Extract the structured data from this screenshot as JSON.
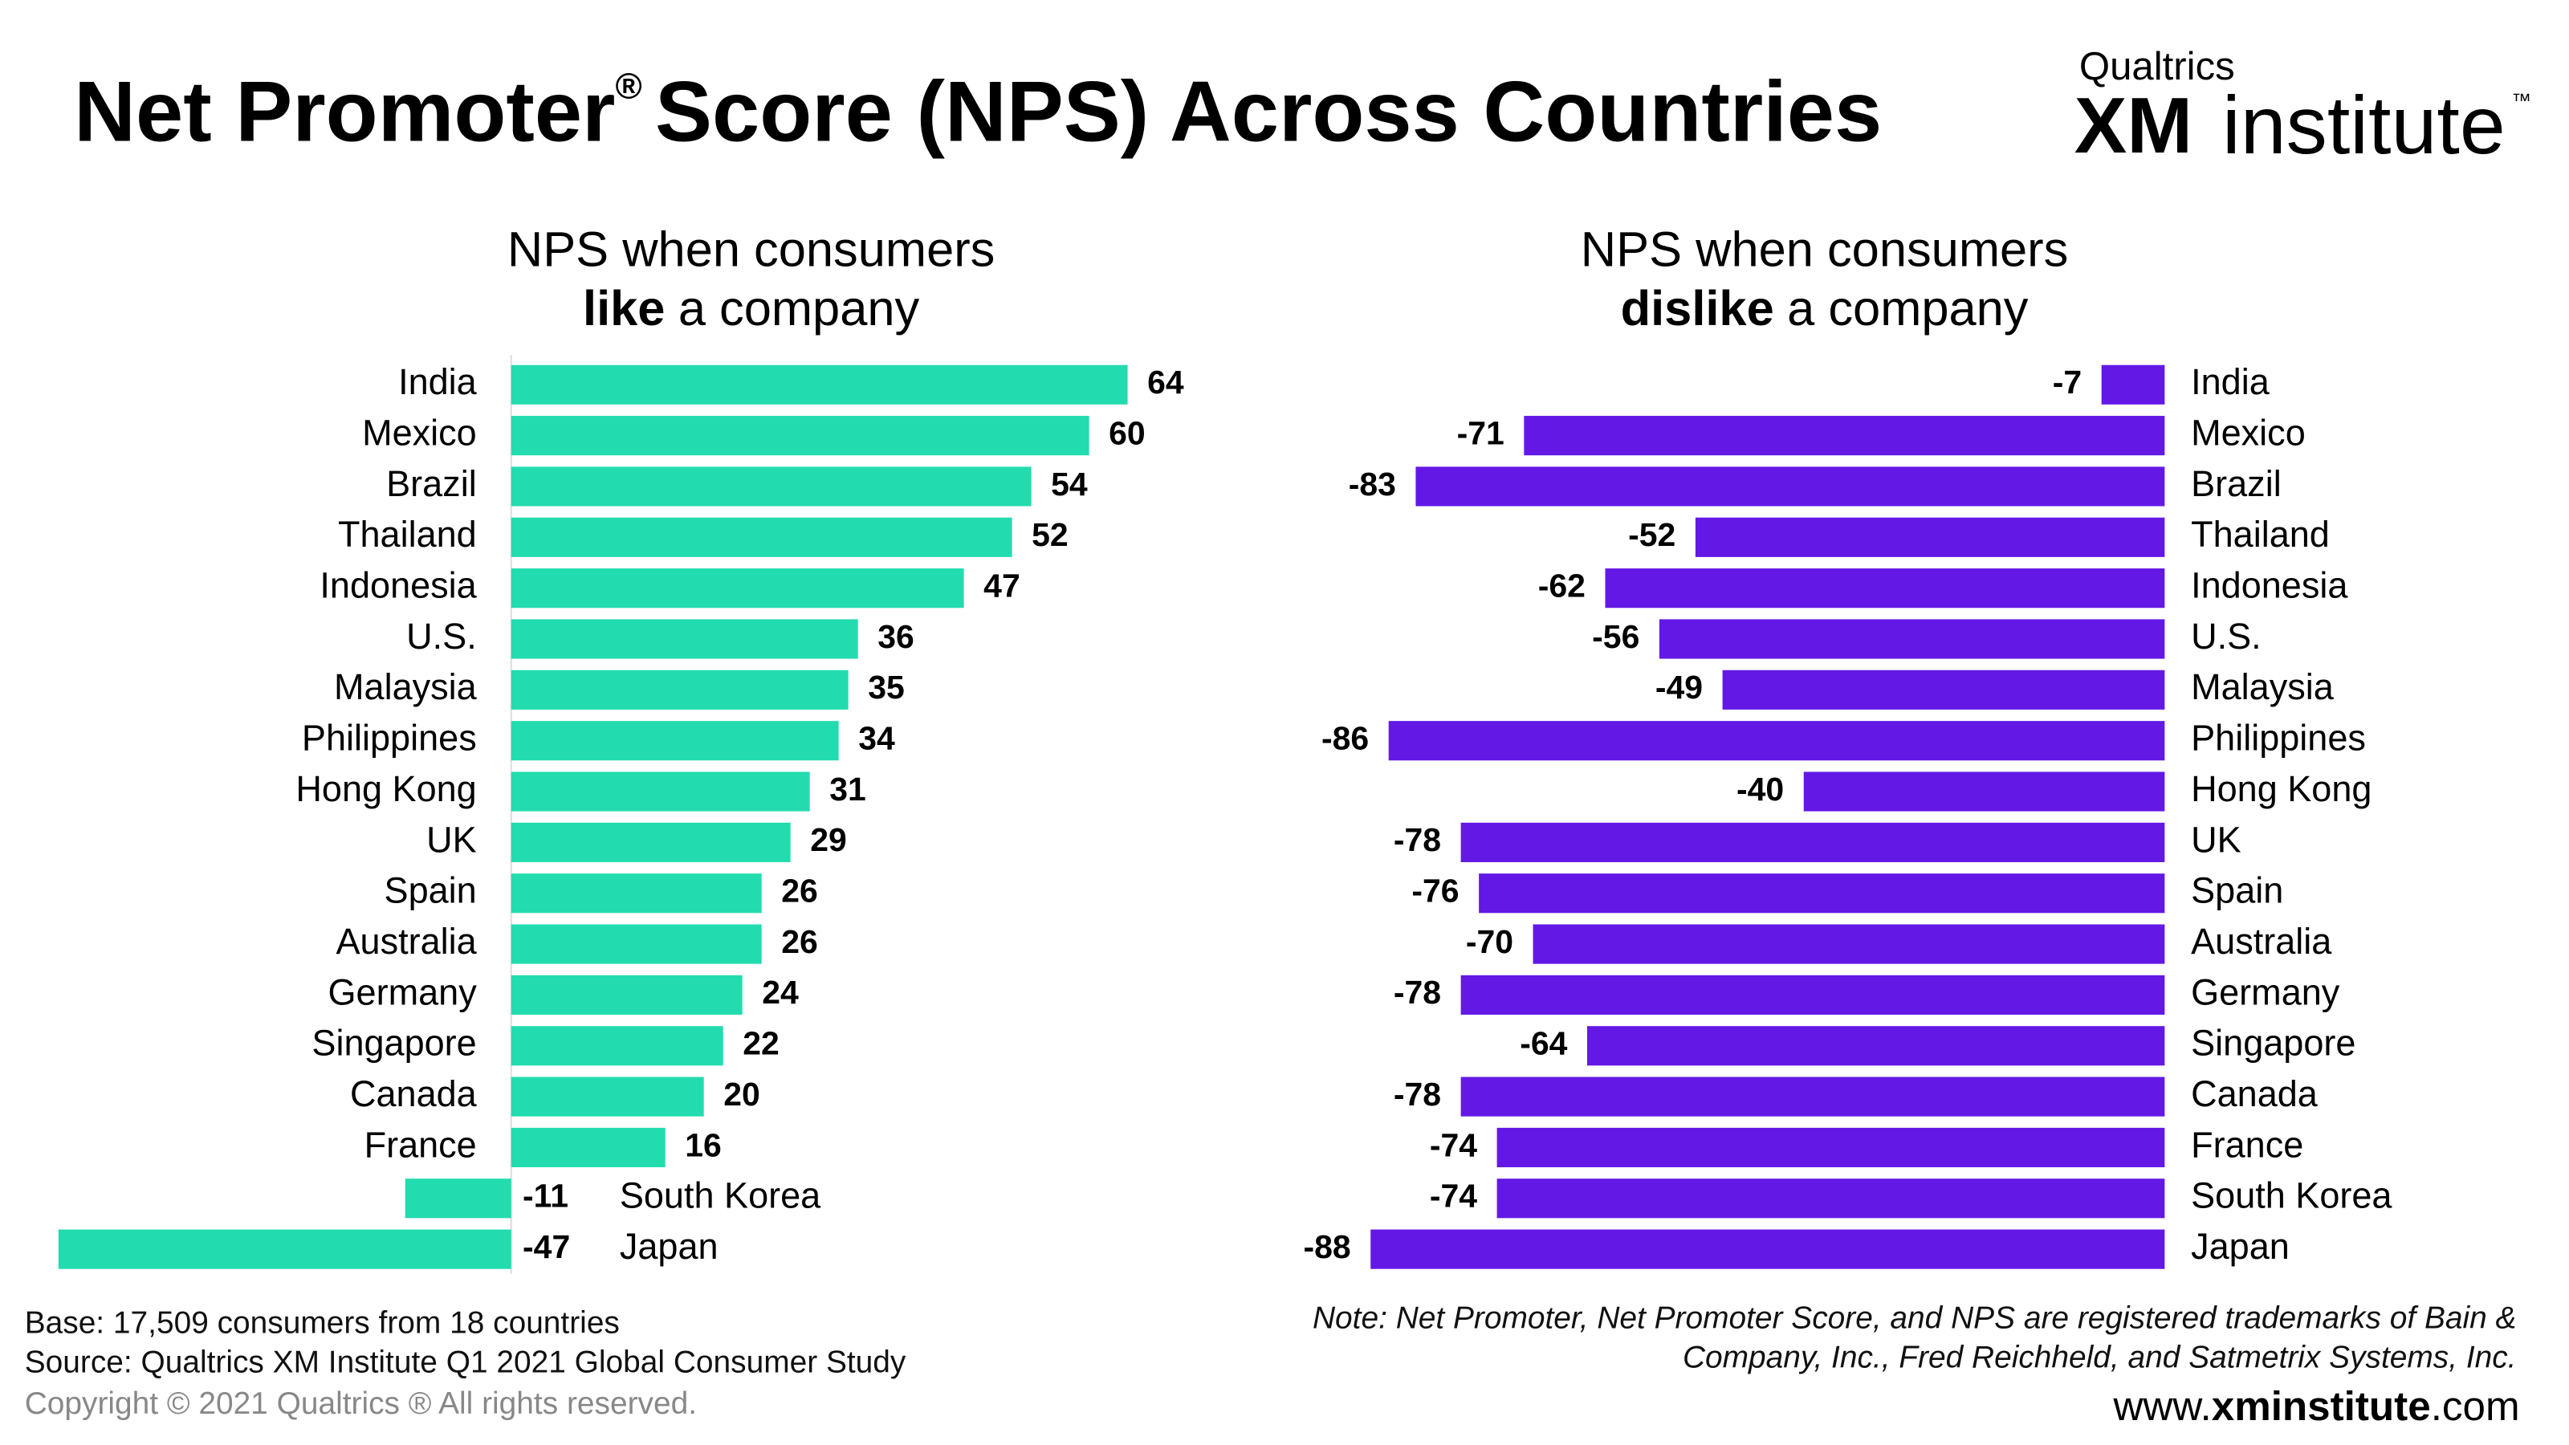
{
  "header": {
    "title_a": "Net Promoter",
    "title_reg": "®",
    "title_b": "Score (NPS) Across Countries",
    "logo_top": "Qualtrics",
    "logo_xm": "XM",
    "logo_institute": "institute",
    "logo_tm": "™"
  },
  "chart_data": [
    {
      "type": "bar",
      "orientation": "horizontal",
      "title_a": "NPS when consumers",
      "title_bold": "like",
      "title_b": "a company",
      "categories": [
        "India",
        "Mexico",
        "Brazil",
        "Thailand",
        "Indonesia",
        "U.S.",
        "Malaysia",
        "Philippines",
        "Hong Kong",
        "UK",
        "Spain",
        "Australia",
        "Germany",
        "Singapore",
        "Canada",
        "France",
        "South Korea",
        "Japan"
      ],
      "values": [
        64,
        60,
        54,
        52,
        47,
        36,
        35,
        34,
        31,
        29,
        26,
        26,
        24,
        22,
        20,
        16,
        -11,
        -47
      ],
      "color": "#22dcaf"
    },
    {
      "type": "bar",
      "orientation": "horizontal",
      "title_a": "NPS when consumers",
      "title_bold": "dislike",
      "title_b": "a company",
      "categories": [
        "India",
        "Mexico",
        "Brazil",
        "Thailand",
        "Indonesia",
        "U.S.",
        "Malaysia",
        "Philippines",
        "Hong Kong",
        "UK",
        "Spain",
        "Australia",
        "Germany",
        "Singapore",
        "Canada",
        "France",
        "South Korea",
        "Japan"
      ],
      "values": [
        -7,
        -71,
        -83,
        -52,
        -62,
        -56,
        -49,
        -86,
        -40,
        -78,
        -76,
        -70,
        -78,
        -64,
        -78,
        -74,
        -74,
        -88
      ],
      "color": "#6318e6"
    }
  ],
  "footer": {
    "base": "Base: 17,509 consumers from 18 countries",
    "source": "Source: Qualtrics XM Institute Q1 2021 Global Consumer Study",
    "copyright": "Copyright © 2021 Qualtrics ® All rights reserved.",
    "note_1": "Note: Net Promoter, Net Promoter Score, and NPS are registered trademarks of Bain &",
    "note_2": "Company, Inc., Fred Reichheld, and Satmetrix Systems, Inc.",
    "url_a": "www.",
    "url_b": "xminstitute",
    "url_c": ".com"
  }
}
